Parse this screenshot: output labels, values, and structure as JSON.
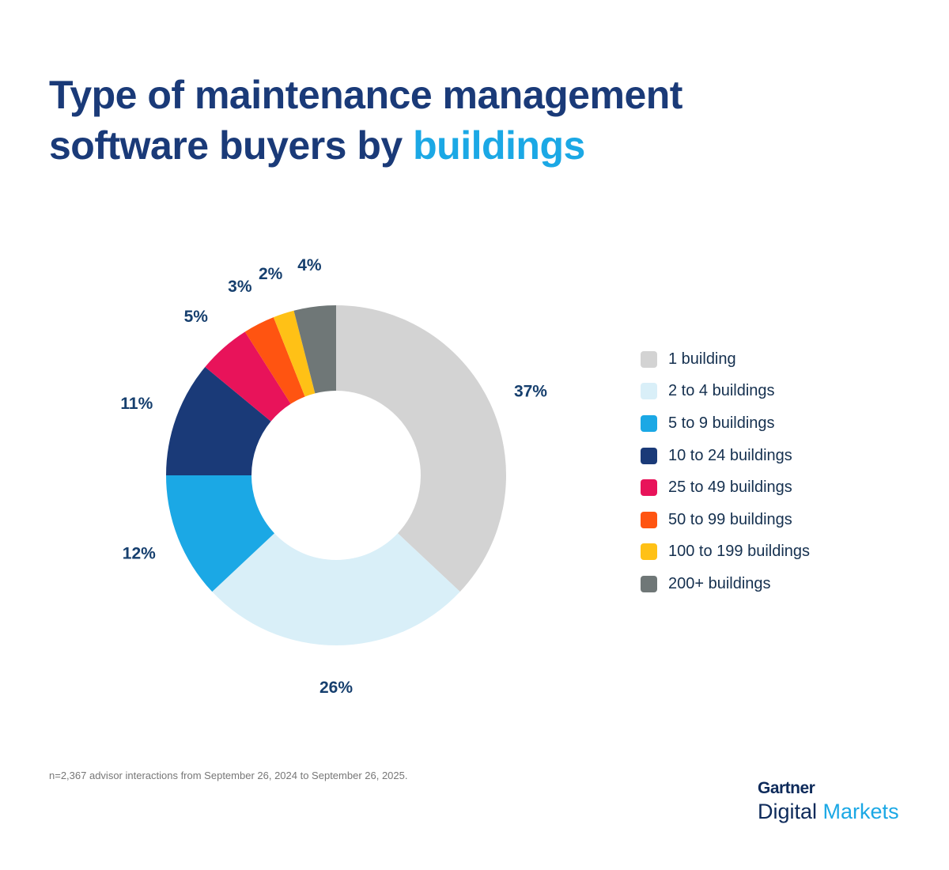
{
  "title": {
    "line1": "Type of maintenance management",
    "line2_prefix": "software buyers by ",
    "line2_highlight": "buildings"
  },
  "chart_data": {
    "type": "pie",
    "donut": true,
    "categories": [
      "1 building",
      "2 to 4 buildings",
      "5 to 9 buildings",
      "10 to 24 buildings",
      "25 to 49 buildings",
      "50 to 99 buildings",
      "100 to 199 buildings",
      "200+ buildings"
    ],
    "values": [
      37,
      26,
      12,
      11,
      5,
      3,
      2,
      4
    ],
    "labels": [
      "37%",
      "26%",
      "12%",
      "11%",
      "5%",
      "3%",
      "2%",
      "4%"
    ],
    "colors": [
      "#d3d3d3",
      "#d9eff8",
      "#1ba8e5",
      "#1a3a78",
      "#e8135a",
      "#ff5411",
      "#ffc116",
      "#6f7777"
    ],
    "legend_placement": "right"
  },
  "footnote": "n=2,367 advisor interactions from September 26, 2024 to September 26, 2025.",
  "logo": {
    "brand": "Gartner",
    "sub1": "Digital",
    "sub2": "Markets"
  }
}
